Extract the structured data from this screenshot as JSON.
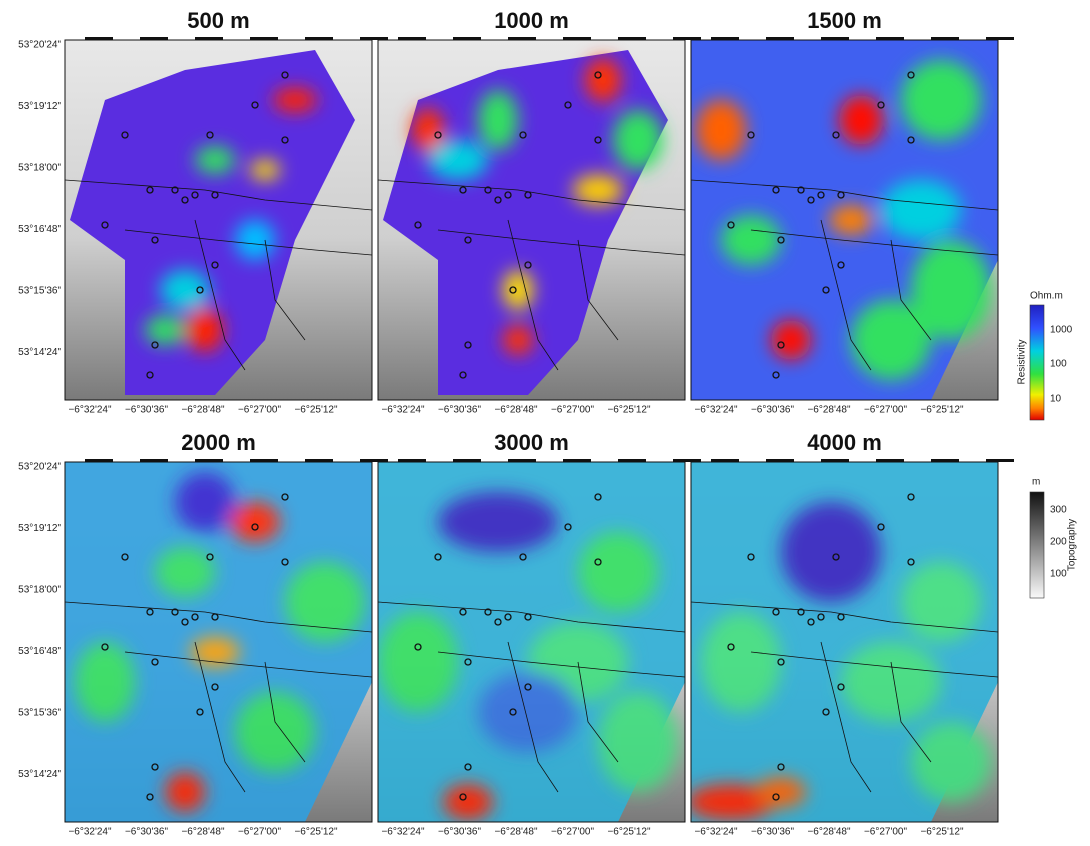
{
  "panels": [
    {
      "title": "500 m"
    },
    {
      "title": "1000 m"
    },
    {
      "title": "1500 m"
    },
    {
      "title": "2000 m"
    },
    {
      "title": "3000 m"
    },
    {
      "title": "4000 m"
    }
  ],
  "lat_labels": [
    "53°20'24\"",
    "53°19'12\"",
    "53°18'00\"",
    "53°16'48\"",
    "53°15'36\"",
    "53°14'24\""
  ],
  "lon_labels": [
    "−6°32'24\"",
    "−6°30'36\"",
    "−6°28'48\"",
    "−6°27'00\"",
    "−6°25'12\""
  ],
  "resistivity_bar": {
    "unit": "Ohm.m",
    "label": "Resistivity",
    "ticks": [
      "1000",
      "100",
      "10"
    ]
  },
  "topography_bar": {
    "unit": "m",
    "label": "Topography",
    "ticks": [
      "300",
      "200",
      "100"
    ]
  }
}
